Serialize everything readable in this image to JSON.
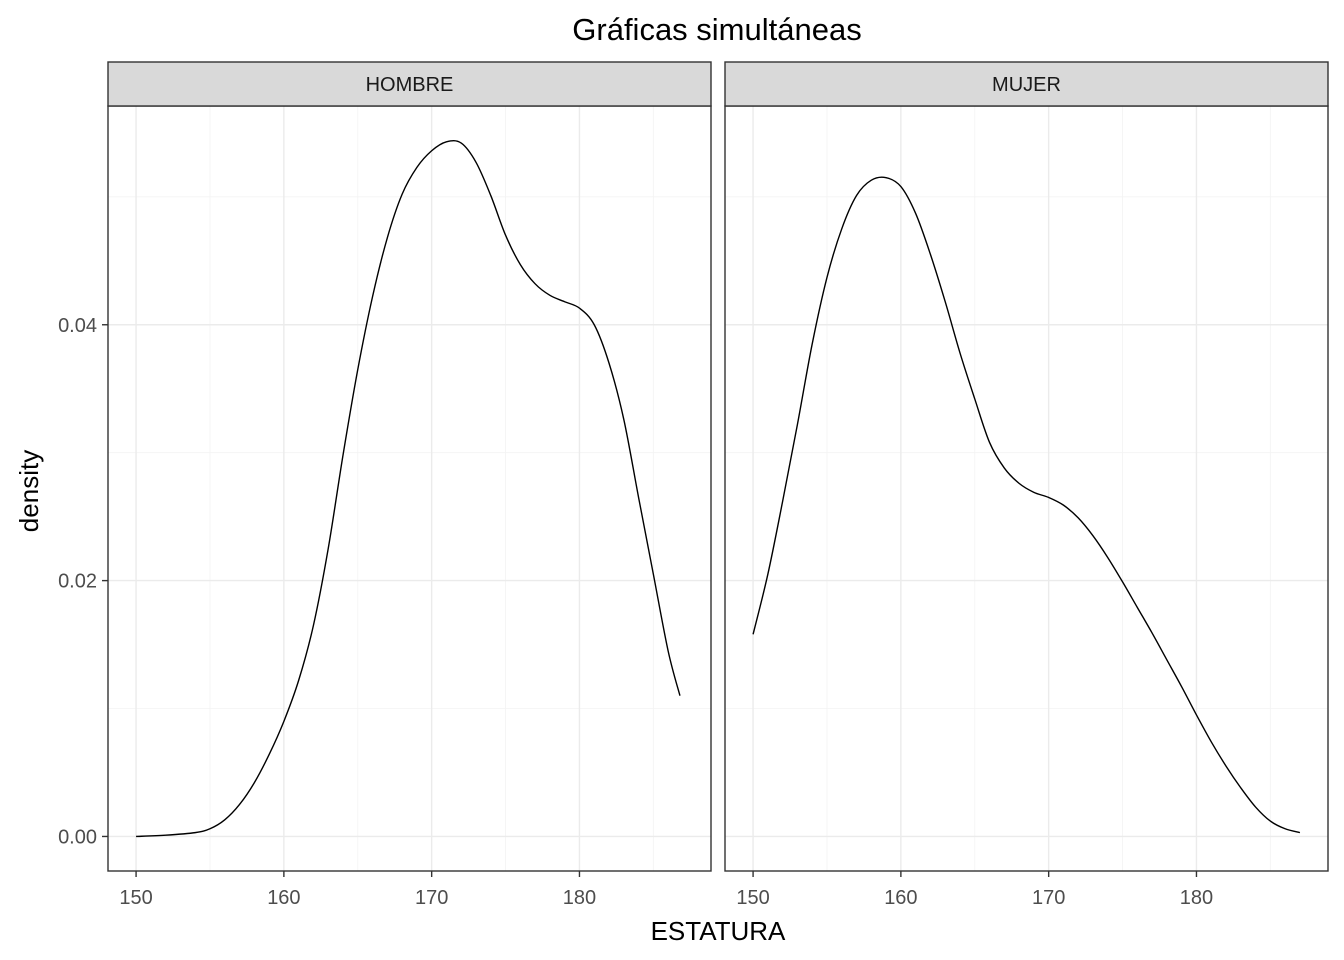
{
  "chart_data": {
    "type": "line",
    "subtype": "density",
    "title": "Gráficas simultáneas",
    "xlabel": "ESTATURA",
    "ylabel": "density",
    "xlim": [
      148.1,
      188.9
    ],
    "ylim": [
      -0.0027,
      0.0571
    ],
    "x_ticks": [
      150,
      160,
      170,
      180
    ],
    "x_tick_labels": [
      "150",
      "160",
      "170",
      "180"
    ],
    "y_ticks": [
      0.0,
      0.02,
      0.04
    ],
    "y_tick_labels": [
      "0.00",
      "0.02",
      "0.04"
    ],
    "grid": true,
    "colors": {
      "line": "#000000",
      "strip": "#d9d9d9",
      "grid": "#ebebeb"
    },
    "facets": [
      {
        "strip_label": "HOMBRE",
        "x": [
          150,
          152,
          154,
          155,
          156,
          157,
          158,
          159,
          160,
          161,
          162,
          163,
          164,
          165,
          166,
          167,
          168,
          169,
          170,
          171,
          172,
          173,
          174,
          175,
          176,
          177,
          178,
          179,
          180,
          181,
          182,
          183,
          184,
          185,
          186,
          186.8
        ],
        "values": [
          0.0,
          0.0001,
          0.0003,
          0.0006,
          0.0013,
          0.0025,
          0.0042,
          0.0064,
          0.009,
          0.0122,
          0.0165,
          0.0225,
          0.0298,
          0.0365,
          0.0422,
          0.0468,
          0.0502,
          0.0523,
          0.0536,
          0.0543,
          0.0542,
          0.0527,
          0.0501,
          0.047,
          0.0447,
          0.0432,
          0.0423,
          0.0418,
          0.0413,
          0.04,
          0.037,
          0.0326,
          0.0265,
          0.0205,
          0.0145,
          0.011
        ]
      },
      {
        "strip_label": "MUJER",
        "x": [
          150,
          151,
          152,
          153,
          154,
          155,
          156,
          157,
          158,
          159,
          160,
          161,
          162,
          163,
          164,
          165,
          166,
          167,
          168,
          169,
          170,
          171,
          172,
          173,
          174,
          175,
          176,
          177,
          178,
          179,
          180,
          181,
          182,
          183,
          184,
          185,
          186,
          187
        ],
        "values": [
          0.0158,
          0.0205,
          0.0262,
          0.0322,
          0.0385,
          0.0437,
          0.0475,
          0.0501,
          0.0513,
          0.0515,
          0.0508,
          0.0487,
          0.0455,
          0.0418,
          0.0378,
          0.0342,
          0.0308,
          0.0288,
          0.0276,
          0.0269,
          0.0265,
          0.0259,
          0.0249,
          0.0235,
          0.0218,
          0.0199,
          0.0179,
          0.0159,
          0.0138,
          0.0117,
          0.0095,
          0.0074,
          0.0055,
          0.0038,
          0.0023,
          0.0012,
          0.0006,
          0.0003
        ]
      }
    ]
  }
}
